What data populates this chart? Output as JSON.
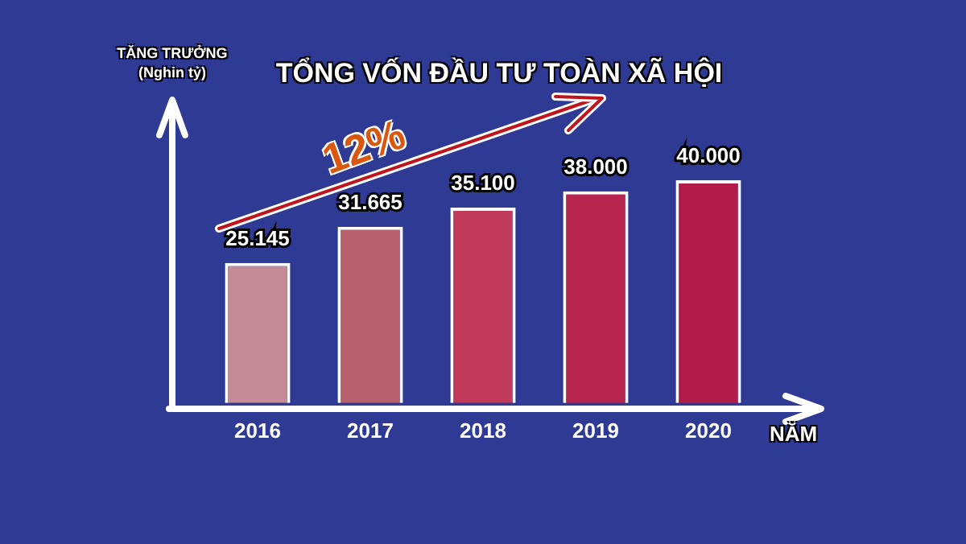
{
  "chart_data": {
    "type": "bar",
    "title": "TỔNG VỐN ĐẦU TƯ TOÀN XÃ HỘI",
    "xlabel": "NĂM",
    "categories": [
      "2016",
      "2017",
      "2018",
      "2019",
      "2020"
    ],
    "values": [
      25145,
      31665,
      35100,
      38000,
      40000
    ],
    "value_labels": [
      "25.145",
      "31.665",
      "35.100",
      "38.000",
      "40.000"
    ],
    "colors": [
      "#c48a96",
      "#b9606e",
      "#c03a5a",
      "#b8254e",
      "#b31c48"
    ],
    "annotations": [
      "TĂNG TRƯỞNG\n(Nghin tỷ)",
      "12%"
    ],
    "grid": false,
    "legend": false
  }
}
